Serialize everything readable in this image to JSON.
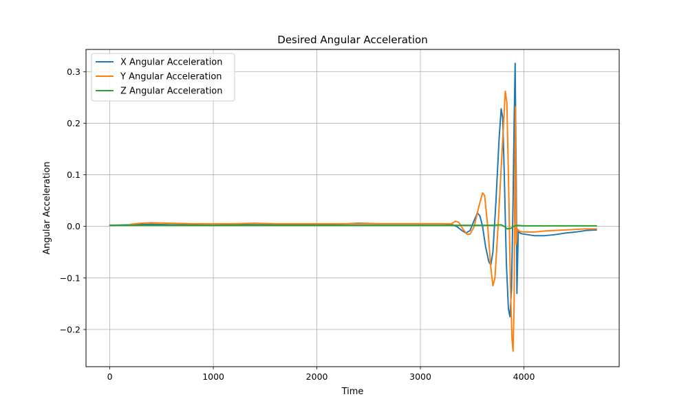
{
  "chart_data": {
    "type": "line",
    "title": "Desired Angular Acceleration",
    "xlabel": "Time",
    "ylabel": "Angular Acceleration",
    "xlim": [
      -230,
      4920
    ],
    "ylim": [
      -0.272,
      0.343
    ],
    "xticks": [
      0,
      1000,
      2000,
      3000,
      4000
    ],
    "xtick_labels": [
      "0",
      "1000",
      "2000",
      "3000",
      "4000"
    ],
    "yticks": [
      -0.2,
      -0.1,
      0.0,
      0.1,
      0.2,
      0.3
    ],
    "ytick_labels": [
      "−0.2",
      "−0.1",
      "0.0",
      "0.1",
      "0.2",
      "0.3"
    ],
    "grid": true,
    "legend_position": "top-left",
    "series": [
      {
        "name": "X Angular Acceleration",
        "color": "#1f77b4",
        "points": [
          [
            0,
            0.002
          ],
          [
            200,
            0.003
          ],
          [
            400,
            0.004
          ],
          [
            600,
            0.003
          ],
          [
            800,
            0.003
          ],
          [
            1000,
            0.002
          ],
          [
            1200,
            0.004
          ],
          [
            1400,
            0.003
          ],
          [
            1600,
            0.003
          ],
          [
            1800,
            0.003
          ],
          [
            2000,
            0.003
          ],
          [
            2200,
            0.004
          ],
          [
            2400,
            0.006
          ],
          [
            2600,
            0.005
          ],
          [
            2800,
            0.005
          ],
          [
            3000,
            0.005
          ],
          [
            3200,
            0.005
          ],
          [
            3300,
            0.004
          ],
          [
            3350,
            0.0
          ],
          [
            3400,
            -0.008
          ],
          [
            3440,
            -0.013
          ],
          [
            3480,
            -0.008
          ],
          [
            3520,
            0.012
          ],
          [
            3550,
            0.026
          ],
          [
            3575,
            0.02
          ],
          [
            3600,
            0.0
          ],
          [
            3630,
            -0.04
          ],
          [
            3660,
            -0.068
          ],
          [
            3680,
            -0.075
          ],
          [
            3700,
            -0.05
          ],
          [
            3730,
            0.05
          ],
          [
            3760,
            0.17
          ],
          [
            3780,
            0.228
          ],
          [
            3795,
            0.21
          ],
          [
            3810,
            0.1
          ],
          [
            3830,
            -0.07
          ],
          [
            3850,
            -0.16
          ],
          [
            3865,
            -0.175
          ],
          [
            3880,
            -0.12
          ],
          [
            3895,
            0.05
          ],
          [
            3905,
            0.2
          ],
          [
            3915,
            0.316
          ],
          [
            3925,
            0.1
          ],
          [
            3932,
            -0.13
          ],
          [
            3945,
            -0.01
          ],
          [
            3970,
            -0.014
          ],
          [
            4000,
            -0.015
          ],
          [
            4100,
            -0.018
          ],
          [
            4200,
            -0.018
          ],
          [
            4300,
            -0.016
          ],
          [
            4400,
            -0.013
          ],
          [
            4500,
            -0.011
          ],
          [
            4600,
            -0.008
          ],
          [
            4700,
            -0.007
          ]
        ]
      },
      {
        "name": "Y Angular Acceleration",
        "color": "#ff7f0e",
        "points": [
          [
            200,
            0.004
          ],
          [
            300,
            0.006
          ],
          [
            400,
            0.007
          ],
          [
            600,
            0.006
          ],
          [
            800,
            0.005
          ],
          [
            1000,
            0.005
          ],
          [
            1200,
            0.005
          ],
          [
            1400,
            0.006
          ],
          [
            1600,
            0.005
          ],
          [
            1800,
            0.005
          ],
          [
            2000,
            0.005
          ],
          [
            2200,
            0.005
          ],
          [
            2400,
            0.005
          ],
          [
            2600,
            0.005
          ],
          [
            2800,
            0.005
          ],
          [
            3000,
            0.005
          ],
          [
            3200,
            0.005
          ],
          [
            3300,
            0.005
          ],
          [
            3340,
            0.01
          ],
          [
            3370,
            0.008
          ],
          [
            3410,
            -0.005
          ],
          [
            3450,
            -0.015
          ],
          [
            3480,
            -0.015
          ],
          [
            3520,
            0.0
          ],
          [
            3560,
            0.035
          ],
          [
            3600,
            0.065
          ],
          [
            3620,
            0.06
          ],
          [
            3650,
            0.0
          ],
          [
            3680,
            -0.08
          ],
          [
            3700,
            -0.115
          ],
          [
            3720,
            -0.1
          ],
          [
            3750,
            0.0
          ],
          [
            3790,
            0.15
          ],
          [
            3820,
            0.262
          ],
          [
            3835,
            0.24
          ],
          [
            3850,
            0.1
          ],
          [
            3870,
            -0.12
          ],
          [
            3885,
            -0.22
          ],
          [
            3895,
            -0.242
          ],
          [
            3905,
            -0.15
          ],
          [
            3912,
            0.1
          ],
          [
            3918,
            0.232
          ],
          [
            3925,
            -0.035
          ],
          [
            3935,
            -0.005
          ],
          [
            3960,
            -0.01
          ],
          [
            4000,
            -0.011
          ],
          [
            4100,
            -0.011
          ],
          [
            4200,
            -0.009
          ],
          [
            4300,
            -0.008
          ],
          [
            4400,
            -0.007
          ],
          [
            4500,
            -0.006
          ],
          [
            4600,
            -0.005
          ],
          [
            4700,
            -0.005
          ]
        ]
      },
      {
        "name": "Z Angular Acceleration",
        "color": "#2ca02c",
        "points": [
          [
            0,
            0.002
          ],
          [
            500,
            0.002
          ],
          [
            1000,
            0.002
          ],
          [
            1500,
            0.002
          ],
          [
            2000,
            0.002
          ],
          [
            2500,
            0.002
          ],
          [
            3000,
            0.002
          ],
          [
            3300,
            0.002
          ],
          [
            3500,
            0.002
          ],
          [
            3700,
            0.002
          ],
          [
            3780,
            0.003
          ],
          [
            3810,
            0.0
          ],
          [
            3840,
            -0.005
          ],
          [
            3870,
            -0.004
          ],
          [
            3900,
            0.0
          ],
          [
            3930,
            0.002
          ],
          [
            4000,
            0.001
          ],
          [
            4300,
            0.001
          ],
          [
            4700,
            0.001
          ]
        ]
      }
    ]
  }
}
